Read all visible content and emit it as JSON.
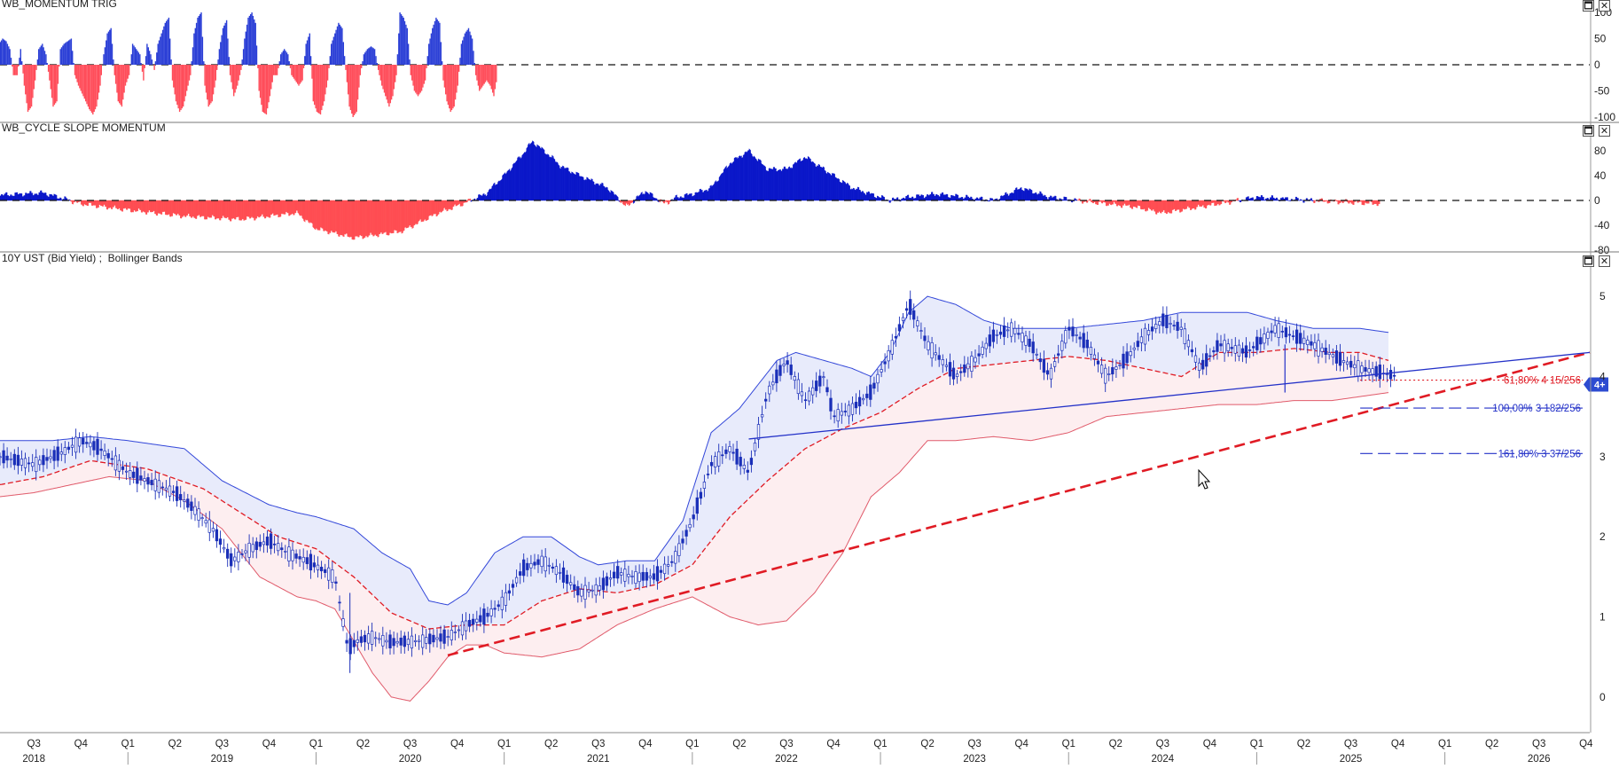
{
  "panes": [
    {
      "id": "momentum-trig",
      "title": "WB_MOMENTUM TRIG",
      "maximize_label": "🗖",
      "close_label": "✕"
    },
    {
      "id": "cycle-slope",
      "title": "WB_CYCLE SLOPE MOMENTUM",
      "maximize_label": "🗖",
      "close_label": "✕"
    },
    {
      "id": "price",
      "title": "10Y UST (Bid Yield) ;  Bollinger Bands",
      "maximize_label": "🗖",
      "close_label": "✕"
    }
  ],
  "colors": {
    "positive": "#2b3fd6",
    "negative": "#ff4d5a",
    "candle": "#1a2fb8",
    "band_upper": "#3347d9",
    "band_lower": "#e05a6a",
    "band_fill_upper": "#e8ebfb",
    "band_fill_lower": "#fdeef0",
    "midline": "#e01b24",
    "trendline_red": "#e01b24",
    "trendline_blue": "#2331c8",
    "fib_blue": "#2331c8",
    "fib_red": "#e01b24",
    "cycle_pos": "#0a17c9",
    "cycle_neg": "#ff4d52"
  },
  "current_marker": "4+",
  "chart_data": [
    {
      "type": "bar",
      "pane": "WB_MOMENTUM TRIG",
      "y_ticks": [
        "100",
        "50",
        "0",
        "-50",
        "-100"
      ],
      "ylim": [
        -100,
        100
      ],
      "x_start": 2017.95,
      "x_step_years": 0.0192,
      "values": [
        40,
        60,
        -20,
        -30,
        -60,
        -80,
        -70,
        -30,
        10,
        30,
        -10,
        60,
        70,
        -20,
        -70,
        -90,
        -95,
        -60,
        -10,
        40,
        50,
        45,
        30,
        -20,
        -20,
        30,
        -40,
        -90,
        -80,
        -30,
        30,
        40,
        20,
        -30,
        -80,
        -70,
        30,
        40,
        45,
        50,
        -20,
        -40,
        -55,
        -70,
        -85,
        -95,
        -80,
        -40,
        20,
        60,
        70,
        -20,
        -70,
        -80,
        -40,
        -20,
        40,
        30,
        20,
        -30,
        40,
        20,
        -10,
        40,
        60,
        80,
        90,
        -30,
        -70,
        -90,
        -80,
        -50,
        -20,
        60,
        90,
        100,
        -40,
        -80,
        -70,
        -30,
        30,
        70,
        85,
        -20,
        -60,
        -40,
        -10,
        50,
        90,
        100,
        80,
        -50,
        -90,
        -95,
        -60,
        -20,
        -20,
        20,
        30,
        20,
        -20,
        -30,
        -40,
        -30,
        40,
        60,
        -70,
        -90,
        -95,
        -70,
        -30,
        40,
        60,
        80,
        70,
        -10,
        -80,
        -100,
        -90,
        -20,
        20,
        30,
        35,
        30,
        -10,
        -40,
        -60,
        -80,
        -60,
        -20,
        100,
        90,
        70,
        -20,
        -50,
        -60,
        -50,
        -30,
        40,
        70,
        90,
        80,
        -30,
        -70,
        -90,
        -80,
        -40,
        40,
        60,
        70,
        50,
        -20,
        -50,
        -40,
        -30,
        -40,
        -60,
        -20
      ]
    },
    {
      "type": "area",
      "pane": "WB_CYCLE SLOPE MOMENTUM",
      "y_ticks": [
        "80",
        "40",
        "0",
        "-40",
        "-80"
      ],
      "ylim": [
        -80,
        100
      ],
      "x": [
        2017.95,
        2018.3,
        2018.55,
        2018.75,
        2019.0,
        2019.3,
        2019.6,
        2019.9,
        2020.0,
        2020.2,
        2020.45,
        2020.55,
        2020.65,
        2020.78,
        2020.9,
        2021.0,
        2021.1,
        2021.15,
        2021.25,
        2021.3,
        2021.4,
        2021.55,
        2021.65,
        2021.75,
        2021.85,
        2021.92,
        2022.0,
        2022.1,
        2022.2,
        2022.3,
        2022.4,
        2022.5,
        2022.6,
        2022.75,
        2022.85,
        2022.95,
        2023.05,
        2023.15,
        2023.3,
        2023.6,
        2023.75,
        2023.9,
        2024.05,
        2024.2,
        2024.35,
        2024.5,
        2024.7,
        2024.9,
        2025.0,
        2025.3,
        2025.5,
        2025.65
      ],
      "values": [
        14,
        8,
        12,
        -5,
        -15,
        -25,
        -30,
        -20,
        -45,
        -60,
        -50,
        -35,
        -20,
        -5,
        10,
        40,
        75,
        95,
        70,
        55,
        40,
        20,
        -10,
        15,
        -5,
        5,
        10,
        20,
        60,
        80,
        50,
        50,
        70,
        40,
        20,
        10,
        0,
        5,
        10,
        0,
        20,
        5,
        0,
        -5,
        -10,
        -20,
        -10,
        0,
        5,
        0,
        -3,
        -5
      ]
    },
    {
      "type": "line",
      "pane": "10Y UST (Bid Yield)",
      "y_ticks": [
        "5",
        "4",
        "3",
        "2",
        "1",
        "0"
      ],
      "ylim": [
        -0.4,
        5.4
      ],
      "x_ticks": [
        "Q3",
        "Q4",
        "Q1",
        "Q2",
        "Q3",
        "Q4",
        "Q1",
        "Q2",
        "Q3",
        "Q4",
        "Q1",
        "Q2",
        "Q3",
        "Q4",
        "Q1",
        "Q2",
        "Q3",
        "Q4",
        "Q1",
        "Q2",
        "Q3",
        "Q4",
        "Q1",
        "Q2",
        "Q3",
        "Q4",
        "Q1",
        "Q2",
        "Q3",
        "Q4",
        "Q1",
        "Q2",
        "Q3",
        "Q4"
      ],
      "x_tick_positions": [
        2018.5,
        2018.75,
        2019.0,
        2019.25,
        2019.5,
        2019.75,
        2020.0,
        2020.25,
        2020.5,
        2020.75,
        2021.0,
        2021.25,
        2021.5,
        2021.75,
        2022.0,
        2022.25,
        2022.5,
        2022.75,
        2023.0,
        2023.25,
        2023.5,
        2023.75,
        2024.0,
        2024.25,
        2024.5,
        2024.75,
        2025.0,
        2025.25,
        2025.5,
        2025.75,
        2026.0,
        2026.25,
        2026.5,
        2026.75
      ],
      "years": [
        "2018",
        "2019",
        "2020",
        "2021",
        "2022",
        "2023",
        "2024",
        "2025",
        "2026"
      ],
      "year_positions": [
        2018.0,
        2019.0,
        2020.0,
        2021.0,
        2022.0,
        2023.0,
        2024.0,
        2025.0,
        2026.0
      ],
      "xlim": [
        2018.32,
        2026.77
      ],
      "price": {
        "x": [
          2018.32,
          2018.5,
          2018.65,
          2018.75,
          2018.85,
          2019.0,
          2019.1,
          2019.25,
          2019.35,
          2019.45,
          2019.55,
          2019.65,
          2019.75,
          2019.85,
          2019.95,
          2020.1,
          2020.17,
          2020.22,
          2020.3,
          2020.4,
          2020.55,
          2020.7,
          2020.8,
          2020.9,
          2021.0,
          2021.1,
          2021.2,
          2021.3,
          2021.4,
          2021.5,
          2021.6,
          2021.7,
          2021.8,
          2021.9,
          2022.0,
          2022.1,
          2022.2,
          2022.3,
          2022.4,
          2022.5,
          2022.6,
          2022.7,
          2022.75,
          2022.85,
          2022.95,
          2023.05,
          2023.15,
          2023.25,
          2023.4,
          2023.5,
          2023.6,
          2023.7,
          2023.8,
          2023.9,
          2024.0,
          2024.1,
          2024.2,
          2024.3,
          2024.4,
          2024.5,
          2024.6,
          2024.7,
          2024.8,
          2024.95,
          2025.1,
          2025.2,
          2025.3,
          2025.45,
          2025.55,
          2025.65,
          2025.75
        ],
        "values": [
          3.0,
          2.9,
          3.05,
          3.2,
          3.1,
          2.8,
          2.7,
          2.55,
          2.35,
          2.1,
          1.7,
          1.85,
          1.95,
          1.8,
          1.7,
          1.5,
          0.6,
          0.7,
          0.75,
          0.68,
          0.7,
          0.75,
          0.9,
          1.0,
          1.2,
          1.6,
          1.7,
          1.55,
          1.3,
          1.35,
          1.55,
          1.5,
          1.5,
          1.7,
          2.2,
          2.9,
          3.1,
          2.8,
          3.8,
          4.2,
          3.7,
          4.0,
          3.5,
          3.6,
          3.8,
          4.3,
          4.9,
          4.4,
          4.0,
          4.2,
          4.5,
          4.6,
          4.4,
          4.0,
          4.6,
          4.4,
          4.0,
          4.2,
          4.5,
          4.7,
          4.6,
          4.1,
          4.4,
          4.3,
          4.6,
          4.5,
          4.4,
          4.2,
          4.1,
          4.05,
          4.0
        ]
      },
      "upper_band": {
        "x": [
          2018.32,
          2018.6,
          2018.8,
          2019.0,
          2019.3,
          2019.5,
          2019.75,
          2019.9,
          2020.0,
          2020.2,
          2020.35,
          2020.5,
          2020.6,
          2020.7,
          2020.8,
          2020.95,
          2021.1,
          2021.25,
          2021.4,
          2021.5,
          2021.65,
          2021.8,
          2021.95,
          2022.1,
          2022.25,
          2022.35,
          2022.45,
          2022.55,
          2022.7,
          2022.85,
          2022.95,
          2023.05,
          2023.15,
          2023.25,
          2023.4,
          2023.55,
          2023.7,
          2023.85,
          2024.0,
          2024.2,
          2024.4,
          2024.6,
          2024.75,
          2024.95,
          2025.1,
          2025.3,
          2025.55,
          2025.7
        ],
        "values": [
          3.2,
          3.2,
          3.25,
          3.2,
          3.1,
          2.7,
          2.4,
          2.3,
          2.25,
          2.1,
          1.8,
          1.6,
          1.2,
          1.15,
          1.3,
          1.8,
          2.0,
          2.0,
          1.75,
          1.65,
          1.7,
          1.7,
          2.2,
          3.3,
          3.6,
          3.9,
          4.2,
          4.3,
          4.2,
          4.1,
          4.0,
          4.3,
          4.8,
          5.0,
          4.9,
          4.7,
          4.6,
          4.6,
          4.6,
          4.65,
          4.7,
          4.8,
          4.8,
          4.8,
          4.7,
          4.6,
          4.6,
          4.55
        ]
      },
      "lower_band": {
        "x": [
          2018.32,
          2018.5,
          2018.7,
          2018.9,
          2019.1,
          2019.3,
          2019.5,
          2019.7,
          2019.9,
          2020.0,
          2020.1,
          2020.2,
          2020.3,
          2020.4,
          2020.5,
          2020.6,
          2020.7,
          2020.8,
          2020.9,
          2021.0,
          2021.2,
          2021.4,
          2021.6,
          2021.8,
          2022.0,
          2022.2,
          2022.35,
          2022.5,
          2022.65,
          2022.8,
          2022.95,
          2023.1,
          2023.25,
          2023.4,
          2023.6,
          2023.8,
          2024.0,
          2024.2,
          2024.4,
          2024.6,
          2024.8,
          2025.0,
          2025.2,
          2025.4,
          2025.55,
          2025.7
        ],
        "values": [
          2.5,
          2.55,
          2.65,
          2.75,
          2.7,
          2.45,
          2.1,
          1.5,
          1.25,
          1.2,
          1.1,
          0.7,
          0.3,
          0.0,
          -0.05,
          0.2,
          0.5,
          0.65,
          0.65,
          0.55,
          0.5,
          0.6,
          0.9,
          1.1,
          1.25,
          1.0,
          0.9,
          0.95,
          1.3,
          1.8,
          2.5,
          2.8,
          3.2,
          3.2,
          3.25,
          3.2,
          3.3,
          3.5,
          3.55,
          3.6,
          3.65,
          3.65,
          3.7,
          3.7,
          3.75,
          3.8
        ]
      },
      "midline": {
        "x": [
          2018.32,
          2018.55,
          2018.8,
          2019.1,
          2019.4,
          2019.6,
          2019.8,
          2020.0,
          2020.2,
          2020.4,
          2020.6,
          2020.8,
          2021.0,
          2021.2,
          2021.4,
          2021.6,
          2021.8,
          2022.0,
          2022.2,
          2022.4,
          2022.6,
          2022.8,
          2023.0,
          2023.2,
          2023.4,
          2023.6,
          2023.8,
          2024.0,
          2024.2,
          2024.4,
          2024.6,
          2024.8,
          2025.0,
          2025.2,
          2025.4,
          2025.55,
          2025.7
        ],
        "values": [
          2.65,
          2.75,
          2.95,
          2.85,
          2.6,
          2.3,
          2.0,
          1.85,
          1.5,
          1.05,
          0.85,
          0.9,
          0.9,
          1.2,
          1.35,
          1.3,
          1.4,
          1.65,
          2.25,
          2.7,
          3.1,
          3.35,
          3.55,
          3.85,
          4.1,
          4.15,
          4.2,
          4.25,
          4.2,
          4.1,
          4.0,
          4.3,
          4.3,
          4.35,
          4.3,
          4.3,
          4.2
        ]
      },
      "trendlines": [
        {
          "name": "",
          "from": [
            2020.7,
            0.52
          ],
          "to": [
            2026.77,
            4.3
          ]
        },
        {
          "name": "",
          "from": [
            2022.3,
            3.22
          ],
          "to": [
            2026.77,
            4.3
          ]
        }
      ],
      "fib_levels": [
        {
          "label": "61,80% 4 15/256",
          "value": 3.955,
          "color": "red",
          "x_from": 2025.55
        },
        {
          "label": "100,00% 3 182/256",
          "value": 3.606,
          "color": "blue",
          "x_from": 2025.55
        },
        {
          "label": "161,80% 3 37/256",
          "value": 3.039,
          "color": "blue",
          "x_from": 2025.55
        }
      ]
    }
  ]
}
